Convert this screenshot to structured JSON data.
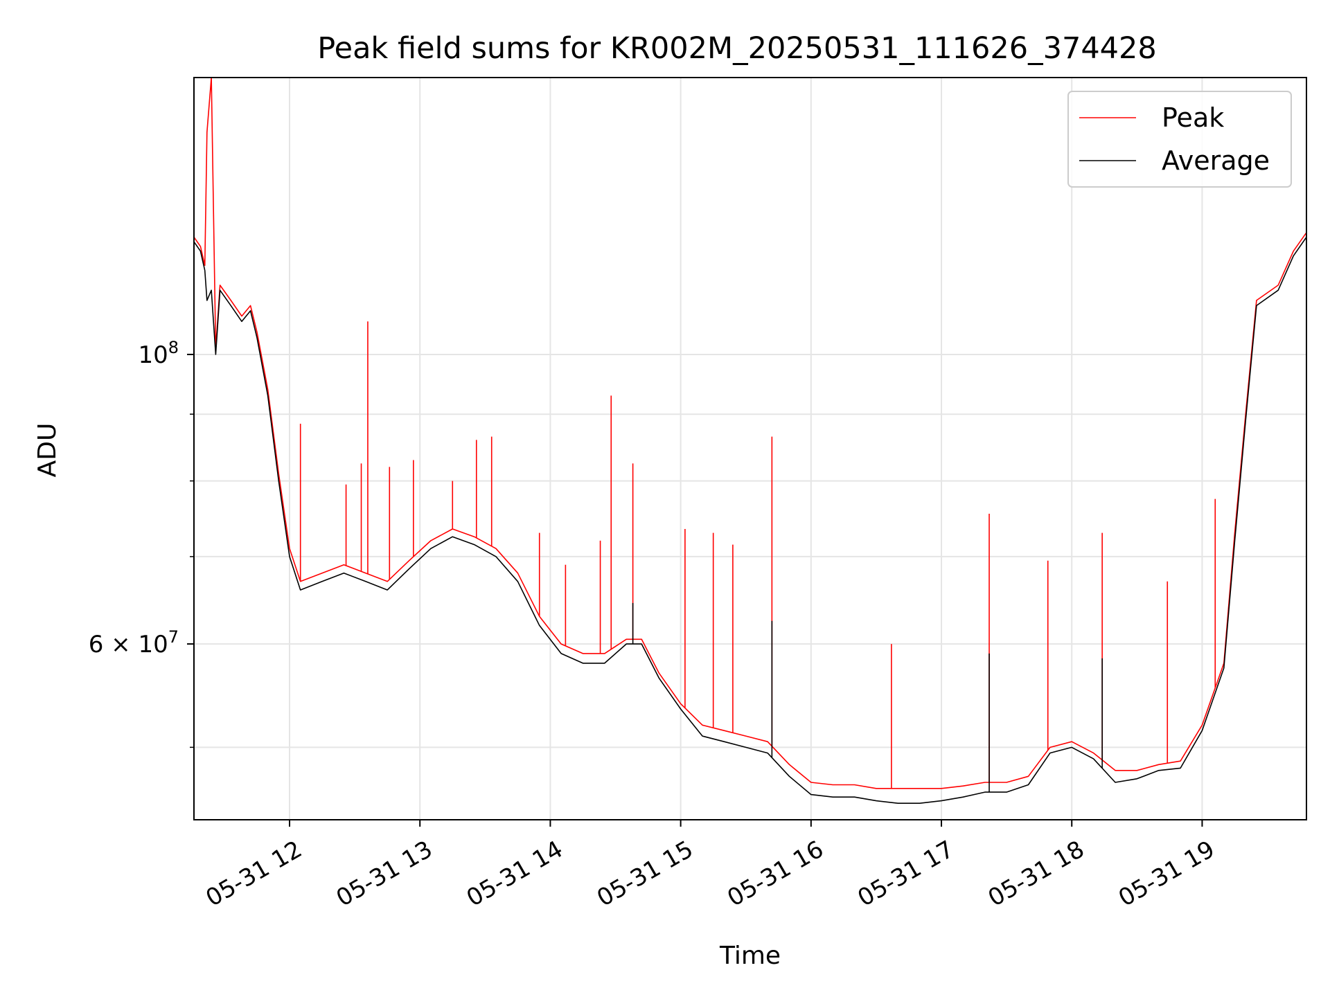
{
  "chart_data": {
    "type": "line",
    "title": "Peak field sums for KR002M_20250531_111626_374428",
    "xlabel": "Time",
    "ylabel": "ADU",
    "y_scale": "log",
    "grid": true,
    "legend_position": "upper right",
    "xlim": [
      "2025-05-31 11:16",
      "2025-05-31 19:48"
    ],
    "ylim": [
      44000000,
      163000000
    ],
    "x_ticks": [
      "05-31 12",
      "05-31 13",
      "05-31 14",
      "05-31 15",
      "05-31 16",
      "05-31 17",
      "05-31 18",
      "05-31 19"
    ],
    "x_tick_values": [
      "2025-05-31 12:00",
      "2025-05-31 13:00",
      "2025-05-31 14:00",
      "2025-05-31 15:00",
      "2025-05-31 16:00",
      "2025-05-31 17:00",
      "2025-05-31 18:00",
      "2025-05-31 19:00"
    ],
    "y_ticks": [
      {
        "value": 100000000,
        "base": "10",
        "exp": "8",
        "coef": ""
      },
      {
        "value": 60000000,
        "base": "10",
        "exp": "7",
        "coef": "6 × "
      }
    ],
    "y_minor_ticks": [
      50000000,
      70000000,
      80000000,
      90000000
    ],
    "series": [
      {
        "name": "Peak",
        "color": "#ff0000",
        "points": [
          [
            "2025-05-31 11:16",
            123000000
          ],
          [
            "2025-05-31 11:19",
            121000000
          ],
          [
            "2025-05-31 11:21",
            117000000
          ],
          [
            "2025-05-31 11:22",
            148000000
          ],
          [
            "2025-05-31 11:24",
            163000000
          ],
          [
            "2025-05-31 11:26",
            101000000
          ],
          [
            "2025-05-31 11:28",
            113000000
          ],
          [
            "2025-05-31 11:33",
            110000000
          ],
          [
            "2025-05-31 11:38",
            107000000
          ],
          [
            "2025-05-31 11:42",
            109000000
          ],
          [
            "2025-05-31 11:45",
            104000000
          ],
          [
            "2025-05-31 11:50",
            94000000
          ],
          [
            "2025-05-31 11:55",
            81000000
          ],
          [
            "2025-05-31 12:00",
            71000000
          ],
          [
            "2025-05-31 12:05",
            67000000
          ],
          [
            "2025-05-31 12:15",
            68000000
          ],
          [
            "2025-05-31 12:25",
            69000000
          ],
          [
            "2025-05-31 12:35",
            68000000
          ],
          [
            "2025-05-31 12:45",
            67000000
          ],
          [
            "2025-05-31 12:55",
            69500000
          ],
          [
            "2025-05-31 13:05",
            72000000
          ],
          [
            "2025-05-31 13:15",
            73500000
          ],
          [
            "2025-05-31 13:25",
            72500000
          ],
          [
            "2025-05-31 13:35",
            71000000
          ],
          [
            "2025-05-31 13:45",
            68000000
          ],
          [
            "2025-05-31 13:55",
            63000000
          ],
          [
            "2025-05-31 14:05",
            60000000
          ],
          [
            "2025-05-31 14:15",
            59000000
          ],
          [
            "2025-05-31 14:25",
            59000000
          ],
          [
            "2025-05-31 14:35",
            60500000
          ],
          [
            "2025-05-31 14:42",
            60500000
          ],
          [
            "2025-05-31 14:50",
            57000000
          ],
          [
            "2025-05-31 15:00",
            54000000
          ],
          [
            "2025-05-31 15:10",
            52000000
          ],
          [
            "2025-05-31 15:20",
            51500000
          ],
          [
            "2025-05-31 15:30",
            51000000
          ],
          [
            "2025-05-31 15:40",
            50500000
          ],
          [
            "2025-05-31 15:50",
            48500000
          ],
          [
            "2025-05-31 16:00",
            47000000
          ],
          [
            "2025-05-31 16:10",
            46800000
          ],
          [
            "2025-05-31 16:20",
            46800000
          ],
          [
            "2025-05-31 16:30",
            46500000
          ],
          [
            "2025-05-31 16:40",
            46500000
          ],
          [
            "2025-05-31 16:50",
            46500000
          ],
          [
            "2025-05-31 17:00",
            46500000
          ],
          [
            "2025-05-31 17:10",
            46700000
          ],
          [
            "2025-05-31 17:20",
            47000000
          ],
          [
            "2025-05-31 17:30",
            47000000
          ],
          [
            "2025-05-31 17:40",
            47500000
          ],
          [
            "2025-05-31 17:50",
            50000000
          ],
          [
            "2025-05-31 18:00",
            50500000
          ],
          [
            "2025-05-31 18:10",
            49500000
          ],
          [
            "2025-05-31 18:20",
            48000000
          ],
          [
            "2025-05-31 18:30",
            48000000
          ],
          [
            "2025-05-31 18:40",
            48500000
          ],
          [
            "2025-05-31 18:50",
            48800000
          ],
          [
            "2025-05-31 19:00",
            52000000
          ],
          [
            "2025-05-31 19:10",
            58000000
          ],
          [
            "2025-05-31 19:15",
            73000000
          ],
          [
            "2025-05-31 19:20",
            90000000
          ],
          [
            "2025-05-31 19:25",
            110000000
          ],
          [
            "2025-05-31 19:35",
            113000000
          ],
          [
            "2025-05-31 19:42",
            120000000
          ],
          [
            "2025-05-31 19:48",
            124000000
          ]
        ],
        "spikes": [
          [
            "2025-05-31 12:05",
            88500000
          ],
          [
            "2025-05-31 12:26",
            79500000
          ],
          [
            "2025-05-31 12:33",
            82500000
          ],
          [
            "2025-05-31 12:36",
            106000000
          ],
          [
            "2025-05-31 12:46",
            82000000
          ],
          [
            "2025-05-31 12:57",
            83000000
          ],
          [
            "2025-05-31 13:15",
            80000000
          ],
          [
            "2025-05-31 13:26",
            86000000
          ],
          [
            "2025-05-31 13:33",
            86500000
          ],
          [
            "2025-05-31 13:55",
            73000000
          ],
          [
            "2025-05-31 14:07",
            69000000
          ],
          [
            "2025-05-31 14:23",
            72000000
          ],
          [
            "2025-05-31 14:28",
            93000000
          ],
          [
            "2025-05-31 14:38",
            82500000
          ],
          [
            "2025-05-31 15:02",
            73500000
          ],
          [
            "2025-05-31 15:15",
            73000000
          ],
          [
            "2025-05-31 15:24",
            71500000
          ],
          [
            "2025-05-31 15:42",
            86500000
          ],
          [
            "2025-05-31 16:37",
            60000000
          ],
          [
            "2025-05-31 17:22",
            75500000
          ],
          [
            "2025-05-31 17:49",
            69500000
          ],
          [
            "2025-05-31 18:14",
            73000000
          ],
          [
            "2025-05-31 18:44",
            67000000
          ],
          [
            "2025-05-31 19:06",
            77500000
          ]
        ]
      },
      {
        "name": "Average",
        "color": "#000000",
        "points": [
          [
            "2025-05-31 11:16",
            122000000
          ],
          [
            "2025-05-31 11:19",
            120000000
          ],
          [
            "2025-05-31 11:21",
            116000000
          ],
          [
            "2025-05-31 11:22",
            110000000
          ],
          [
            "2025-05-31 11:24",
            112000000
          ],
          [
            "2025-05-31 11:26",
            100000000
          ],
          [
            "2025-05-31 11:28",
            112000000
          ],
          [
            "2025-05-31 11:33",
            109000000
          ],
          [
            "2025-05-31 11:38",
            106000000
          ],
          [
            "2025-05-31 11:42",
            108000000
          ],
          [
            "2025-05-31 11:45",
            103000000
          ],
          [
            "2025-05-31 11:50",
            93000000
          ],
          [
            "2025-05-31 11:55",
            80000000
          ],
          [
            "2025-05-31 12:00",
            70000000
          ],
          [
            "2025-05-31 12:05",
            66000000
          ],
          [
            "2025-05-31 12:15",
            67000000
          ],
          [
            "2025-05-31 12:25",
            68000000
          ],
          [
            "2025-05-31 12:35",
            67000000
          ],
          [
            "2025-05-31 12:45",
            66000000
          ],
          [
            "2025-05-31 12:55",
            68500000
          ],
          [
            "2025-05-31 13:05",
            71000000
          ],
          [
            "2025-05-31 13:15",
            72500000
          ],
          [
            "2025-05-31 13:25",
            71500000
          ],
          [
            "2025-05-31 13:35",
            70000000
          ],
          [
            "2025-05-31 13:45",
            67000000
          ],
          [
            "2025-05-31 13:55",
            62000000
          ],
          [
            "2025-05-31 14:05",
            59000000
          ],
          [
            "2025-05-31 14:15",
            58000000
          ],
          [
            "2025-05-31 14:25",
            58000000
          ],
          [
            "2025-05-31 14:35",
            60000000
          ],
          [
            "2025-05-31 14:42",
            60000000
          ],
          [
            "2025-05-31 14:50",
            56500000
          ],
          [
            "2025-05-31 15:00",
            53500000
          ],
          [
            "2025-05-31 15:10",
            51000000
          ],
          [
            "2025-05-31 15:20",
            50500000
          ],
          [
            "2025-05-31 15:30",
            50000000
          ],
          [
            "2025-05-31 15:40",
            49500000
          ],
          [
            "2025-05-31 15:50",
            47500000
          ],
          [
            "2025-05-31 16:00",
            46000000
          ],
          [
            "2025-05-31 16:10",
            45800000
          ],
          [
            "2025-05-31 16:20",
            45800000
          ],
          [
            "2025-05-31 16:30",
            45500000
          ],
          [
            "2025-05-31 16:40",
            45300000
          ],
          [
            "2025-05-31 16:50",
            45300000
          ],
          [
            "2025-05-31 17:00",
            45500000
          ],
          [
            "2025-05-31 17:10",
            45800000
          ],
          [
            "2025-05-31 17:20",
            46200000
          ],
          [
            "2025-05-31 17:30",
            46200000
          ],
          [
            "2025-05-31 17:40",
            46800000
          ],
          [
            "2025-05-31 17:50",
            49500000
          ],
          [
            "2025-05-31 18:00",
            50000000
          ],
          [
            "2025-05-31 18:10",
            49000000
          ],
          [
            "2025-05-31 18:20",
            47000000
          ],
          [
            "2025-05-31 18:30",
            47300000
          ],
          [
            "2025-05-31 18:40",
            48000000
          ],
          [
            "2025-05-31 18:50",
            48200000
          ],
          [
            "2025-05-31 19:00",
            51500000
          ],
          [
            "2025-05-31 19:10",
            57500000
          ],
          [
            "2025-05-31 19:15",
            72000000
          ],
          [
            "2025-05-31 19:20",
            89000000
          ],
          [
            "2025-05-31 19:25",
            109000000
          ],
          [
            "2025-05-31 19:35",
            112000000
          ],
          [
            "2025-05-31 19:42",
            119000000
          ],
          [
            "2025-05-31 19:48",
            123000000
          ]
        ],
        "spikes": [
          [
            "2025-05-31 14:38",
            64500000
          ],
          [
            "2025-05-31 15:42",
            62500000
          ],
          [
            "2025-05-31 17:22",
            59000000
          ],
          [
            "2025-05-31 18:14",
            58500000
          ]
        ]
      }
    ]
  }
}
